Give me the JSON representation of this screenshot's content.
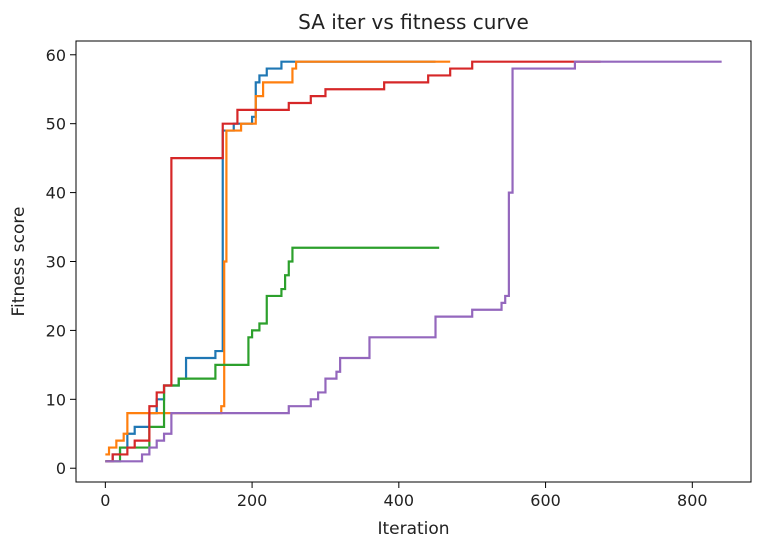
{
  "chart_data": {
    "type": "line",
    "step": true,
    "title": "SA iter vs fitness curve",
    "xlabel": "Iteration",
    "ylabel": "Fitness score",
    "xlim": [
      -40,
      880
    ],
    "ylim": [
      -2,
      62
    ],
    "xticks": [
      0,
      200,
      400,
      600,
      800
    ],
    "yticks": [
      0,
      10,
      20,
      30,
      40,
      50,
      60
    ],
    "grid": false,
    "legend": "none",
    "series": [
      {
        "color": "#1f77b4",
        "x": [
          0,
          10,
          20,
          30,
          40,
          60,
          70,
          80,
          100,
          110,
          140,
          150,
          160,
          175,
          185,
          200,
          205,
          210,
          220,
          240,
          260,
          300,
          400,
          450
        ],
        "y": [
          1,
          2,
          3,
          5,
          6,
          8,
          10,
          12,
          13,
          16,
          16,
          17,
          49,
          50,
          50,
          51,
          56,
          57,
          58,
          59,
          59,
          59,
          59,
          59
        ]
      },
      {
        "color": "#ff7f0e",
        "x": [
          0,
          5,
          15,
          25,
          30,
          60,
          100,
          150,
          158,
          162,
          165,
          175,
          185,
          200,
          205,
          215,
          240,
          255,
          260,
          300,
          400,
          470
        ],
        "y": [
          2,
          3,
          4,
          5,
          8,
          8,
          8,
          8,
          9,
          30,
          49,
          49,
          50,
          50,
          54,
          56,
          56,
          58,
          59,
          59,
          59,
          59
        ]
      },
      {
        "color": "#2ca02c",
        "x": [
          0,
          20,
          40,
          60,
          80,
          100,
          120,
          150,
          180,
          195,
          200,
          210,
          220,
          230,
          240,
          245,
          250,
          255,
          260,
          300,
          400,
          455
        ],
        "y": [
          1,
          3,
          3,
          6,
          12,
          13,
          13,
          15,
          15,
          19,
          20,
          21,
          25,
          25,
          26,
          28,
          30,
          32,
          32,
          32,
          32,
          32
        ]
      },
      {
        "color": "#d62728",
        "x": [
          0,
          10,
          20,
          30,
          40,
          60,
          70,
          80,
          90,
          150,
          160,
          170,
          180,
          200,
          220,
          250,
          270,
          280,
          300,
          320,
          380,
          420,
          440,
          470,
          500,
          600,
          675
        ],
        "y": [
          1,
          2,
          2,
          3,
          4,
          9,
          11,
          12,
          45,
          45,
          50,
          50,
          52,
          52,
          52,
          53,
          53,
          54,
          55,
          55,
          56,
          56,
          57,
          58,
          59,
          59,
          59
        ]
      },
      {
        "color": "#9467bd",
        "x": [
          0,
          30,
          50,
          60,
          70,
          80,
          90,
          150,
          200,
          250,
          280,
          290,
          300,
          310,
          315,
          320,
          340,
          360,
          380,
          400,
          450,
          480,
          500,
          520,
          540,
          545,
          550,
          555,
          560,
          640,
          650,
          700,
          840
        ],
        "y": [
          1,
          1,
          2,
          3,
          4,
          5,
          8,
          8,
          8,
          9,
          10,
          11,
          13,
          13,
          14,
          16,
          16,
          19,
          19,
          19,
          22,
          22,
          23,
          23,
          24,
          25,
          40,
          58,
          58,
          59,
          59,
          59,
          59
        ]
      }
    ]
  }
}
